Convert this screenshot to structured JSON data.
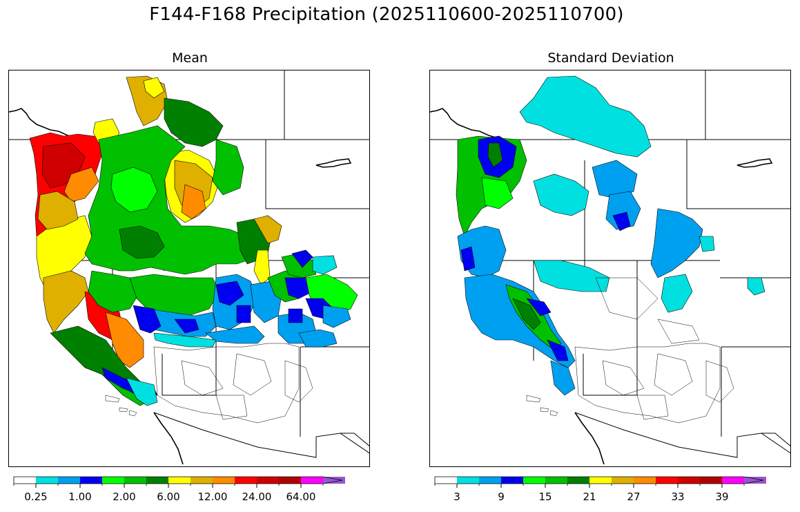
{
  "figure": {
    "title": "F144-F168 Precipitation (2025110600-2025110700)"
  },
  "panels": [
    {
      "title": "Mean",
      "colorbar": {
        "colors": [
          "#ffffff",
          "#00e0e0",
          "#00a0f0",
          "#0000f0",
          "#00ff00",
          "#00c000",
          "#008000",
          "#ffff00",
          "#e0b000",
          "#ff8c00",
          "#ff0000",
          "#d00000",
          "#b00000",
          "#ff00ff",
          "#9955cc"
        ],
        "extend_color": "#9955cc",
        "tick_labels": [
          "0.25",
          "1.00",
          "2.00",
          "6.00",
          "12.00",
          "24.00",
          "64.00"
        ]
      }
    },
    {
      "title": "Standard Deviation",
      "colorbar": {
        "colors": [
          "#ffffff",
          "#00e0e0",
          "#00a0f0",
          "#0000f0",
          "#00ff00",
          "#00c000",
          "#008000",
          "#ffff00",
          "#e0b000",
          "#ff8c00",
          "#ff0000",
          "#d00000",
          "#b00000",
          "#ff00ff",
          "#9955cc"
        ],
        "extend_color": "#9955cc",
        "tick_labels": [
          "3",
          "9",
          "15",
          "21",
          "27",
          "33",
          "39"
        ]
      }
    }
  ]
}
